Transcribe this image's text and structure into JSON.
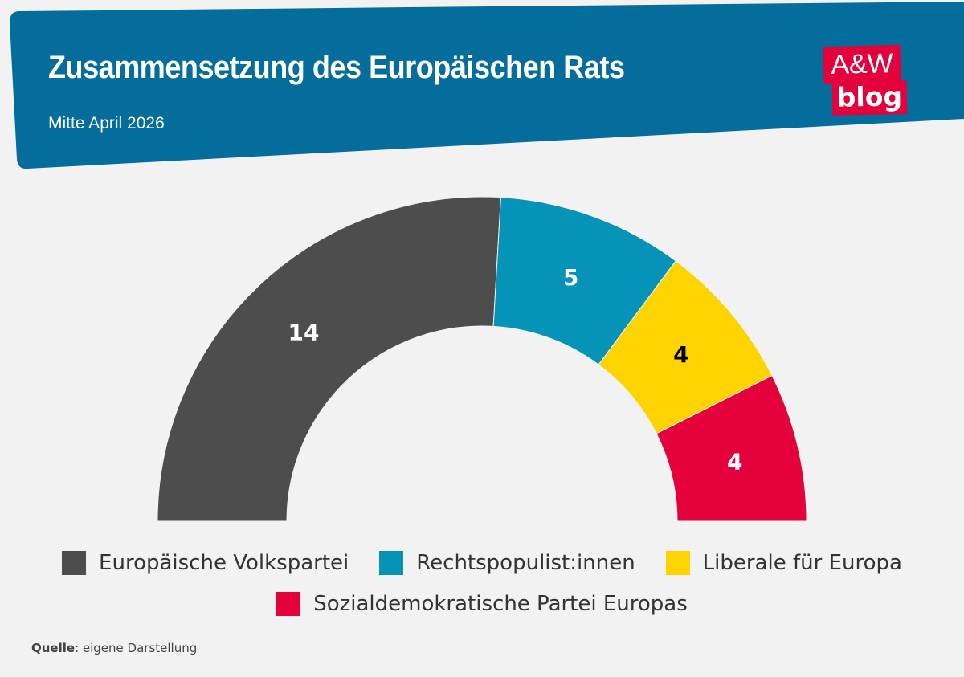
{
  "header": {
    "title": "Zusammensetzung des Europäischen Rats",
    "subtitle": "Mitte April 2026",
    "bg_color": "#046d9b"
  },
  "logo": {
    "line1": "A&W",
    "line2": "blog",
    "color": "#e4003a"
  },
  "chart_data": {
    "type": "pie",
    "variant": "semicircle-donut",
    "categories": [
      "Europäische Volkspartei",
      "Rechtspopulist:innen",
      "Liberale für Europa",
      "Sozialdemokratische Partei Europas"
    ],
    "values": [
      14,
      5,
      4,
      4
    ],
    "labels": [
      "14",
      "5",
      "4",
      "4"
    ],
    "colors": [
      "#4d4d4d",
      "#0593b7",
      "#fed400",
      "#e4003a"
    ],
    "label_colors": [
      "#ffffff",
      "#ffffff",
      "#000000",
      "#ffffff"
    ],
    "legend_position": "bottom"
  },
  "source": {
    "label": "Quelle",
    "text": ": eigene Darstellung"
  }
}
